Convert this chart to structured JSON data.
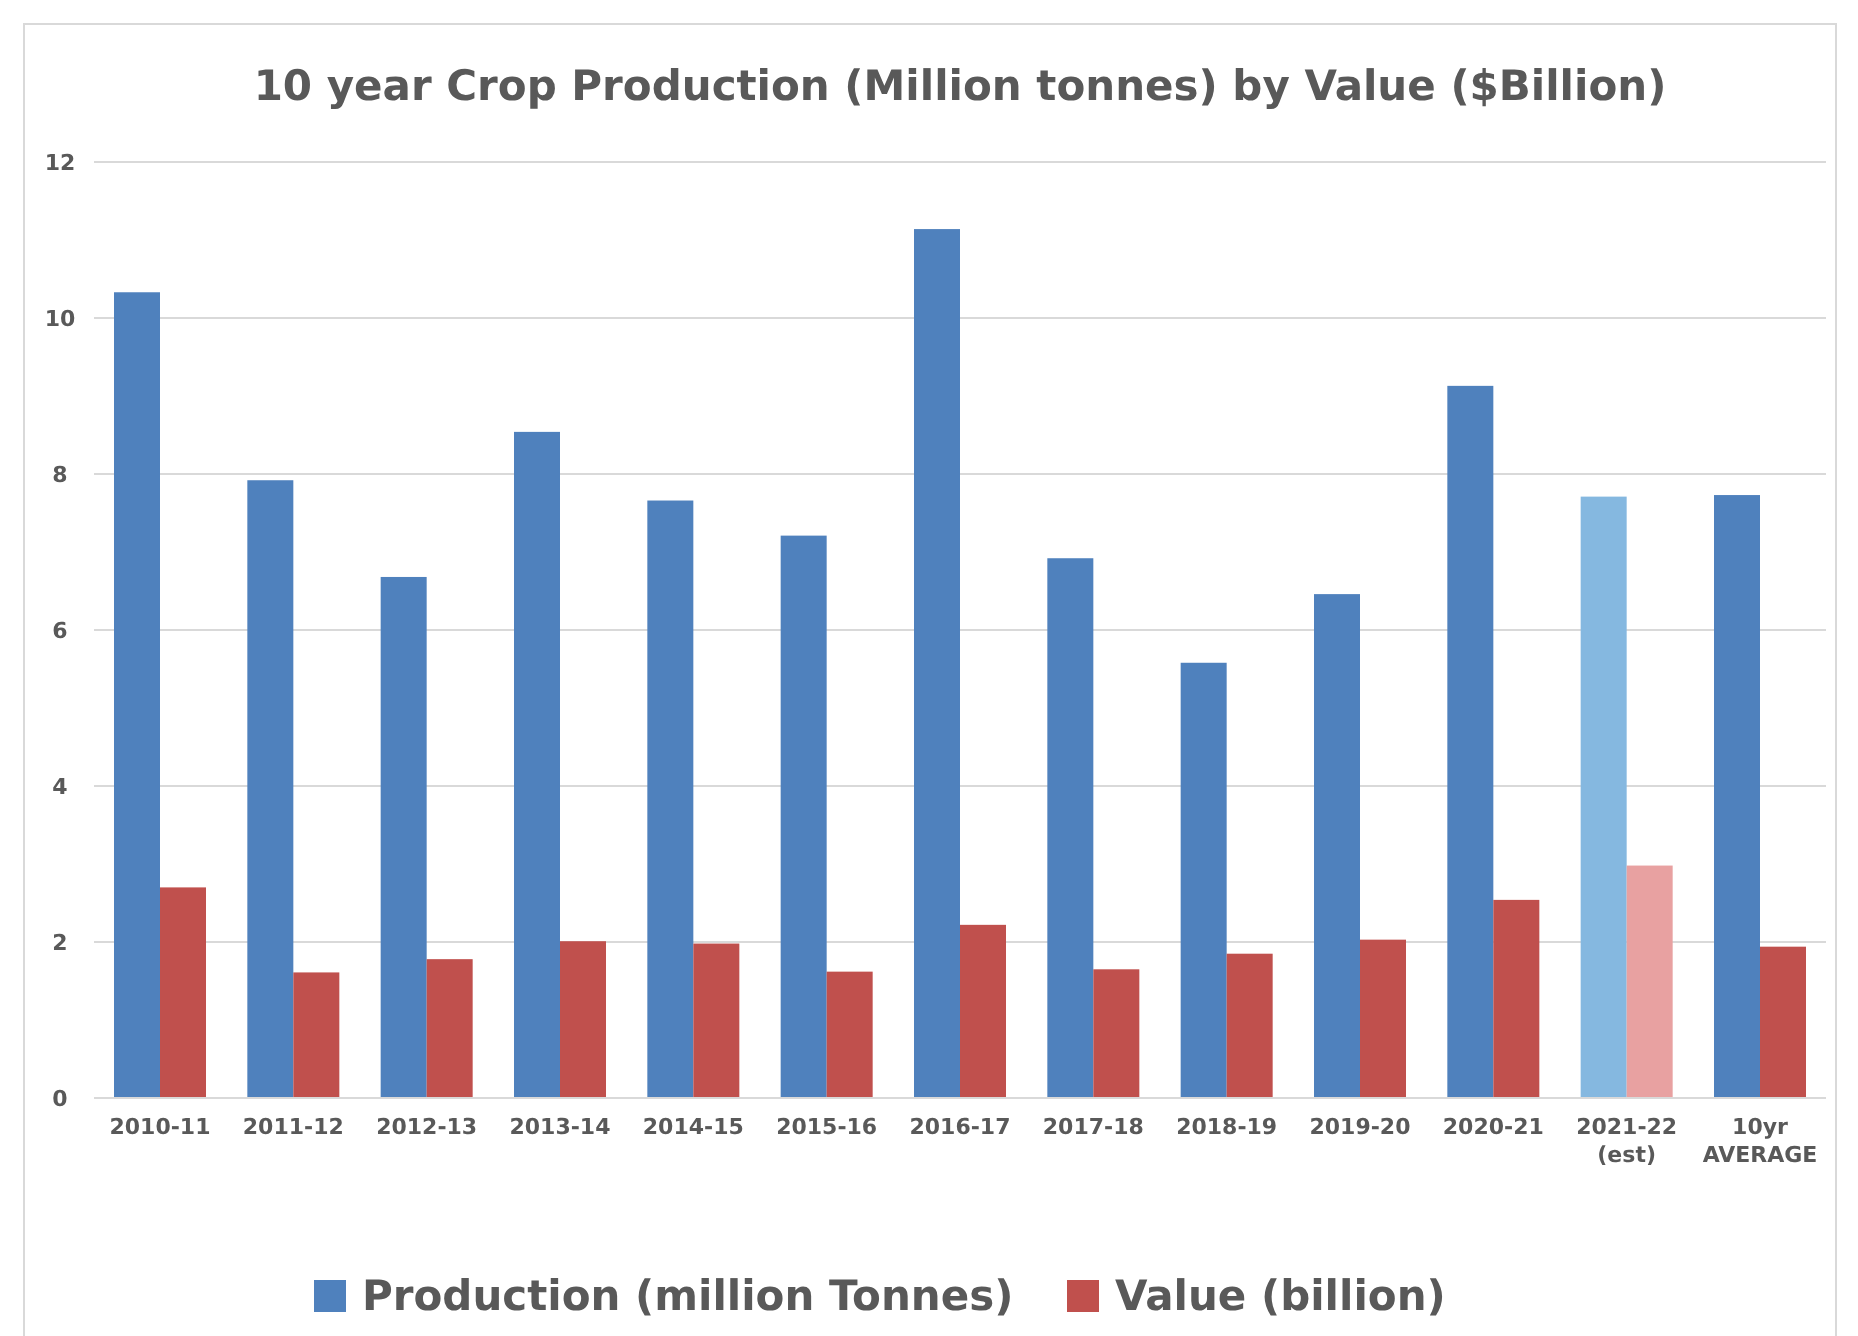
{
  "chart_data": {
    "type": "bar",
    "title": "10 year Crop Production (Million tonnes) by Value ($Billion)",
    "categories": [
      "2010-11",
      "2011-12",
      "2012-13",
      "2013-14",
      "2014-15",
      "2015-16",
      "2016-17",
      "2017-18",
      "2018-19",
      "2019-20",
      "2020-21",
      "2021-22\n(est)",
      "10yr\nAVERAGE"
    ],
    "series": [
      {
        "name": "Production (million Tonnes)",
        "color": "#4f81bd",
        "colors": [
          "#4f81bd",
          "#4f81bd",
          "#4f81bd",
          "#4f81bd",
          "#4f81bd",
          "#4f81bd",
          "#4f81bd",
          "#4f81bd",
          "#4f81bd",
          "#4f81bd",
          "#4f81bd",
          "#85b8e0",
          "#4f81bd"
        ],
        "values": [
          10.33,
          7.92,
          6.68,
          8.54,
          7.66,
          7.21,
          11.14,
          6.92,
          5.58,
          6.46,
          9.13,
          7.71,
          7.73
        ]
      },
      {
        "name": "Value (billion)",
        "color": "#c0504d",
        "colors": [
          "#c0504d",
          "#c0504d",
          "#c0504d",
          "#c0504d",
          "#c0504d",
          "#c0504d",
          "#c0504d",
          "#c0504d",
          "#c0504d",
          "#c0504d",
          "#c0504d",
          "#e8a1a1",
          "#c0504d"
        ],
        "values": [
          2.7,
          1.61,
          1.78,
          2.01,
          1.98,
          1.62,
          2.22,
          1.65,
          1.85,
          2.03,
          2.54,
          2.98,
          1.94
        ]
      }
    ],
    "ylim": [
      0,
      12
    ],
    "yticks": [
      0,
      2,
      4,
      6,
      8,
      10,
      12
    ],
    "grid": "y",
    "legend": "bottom"
  }
}
